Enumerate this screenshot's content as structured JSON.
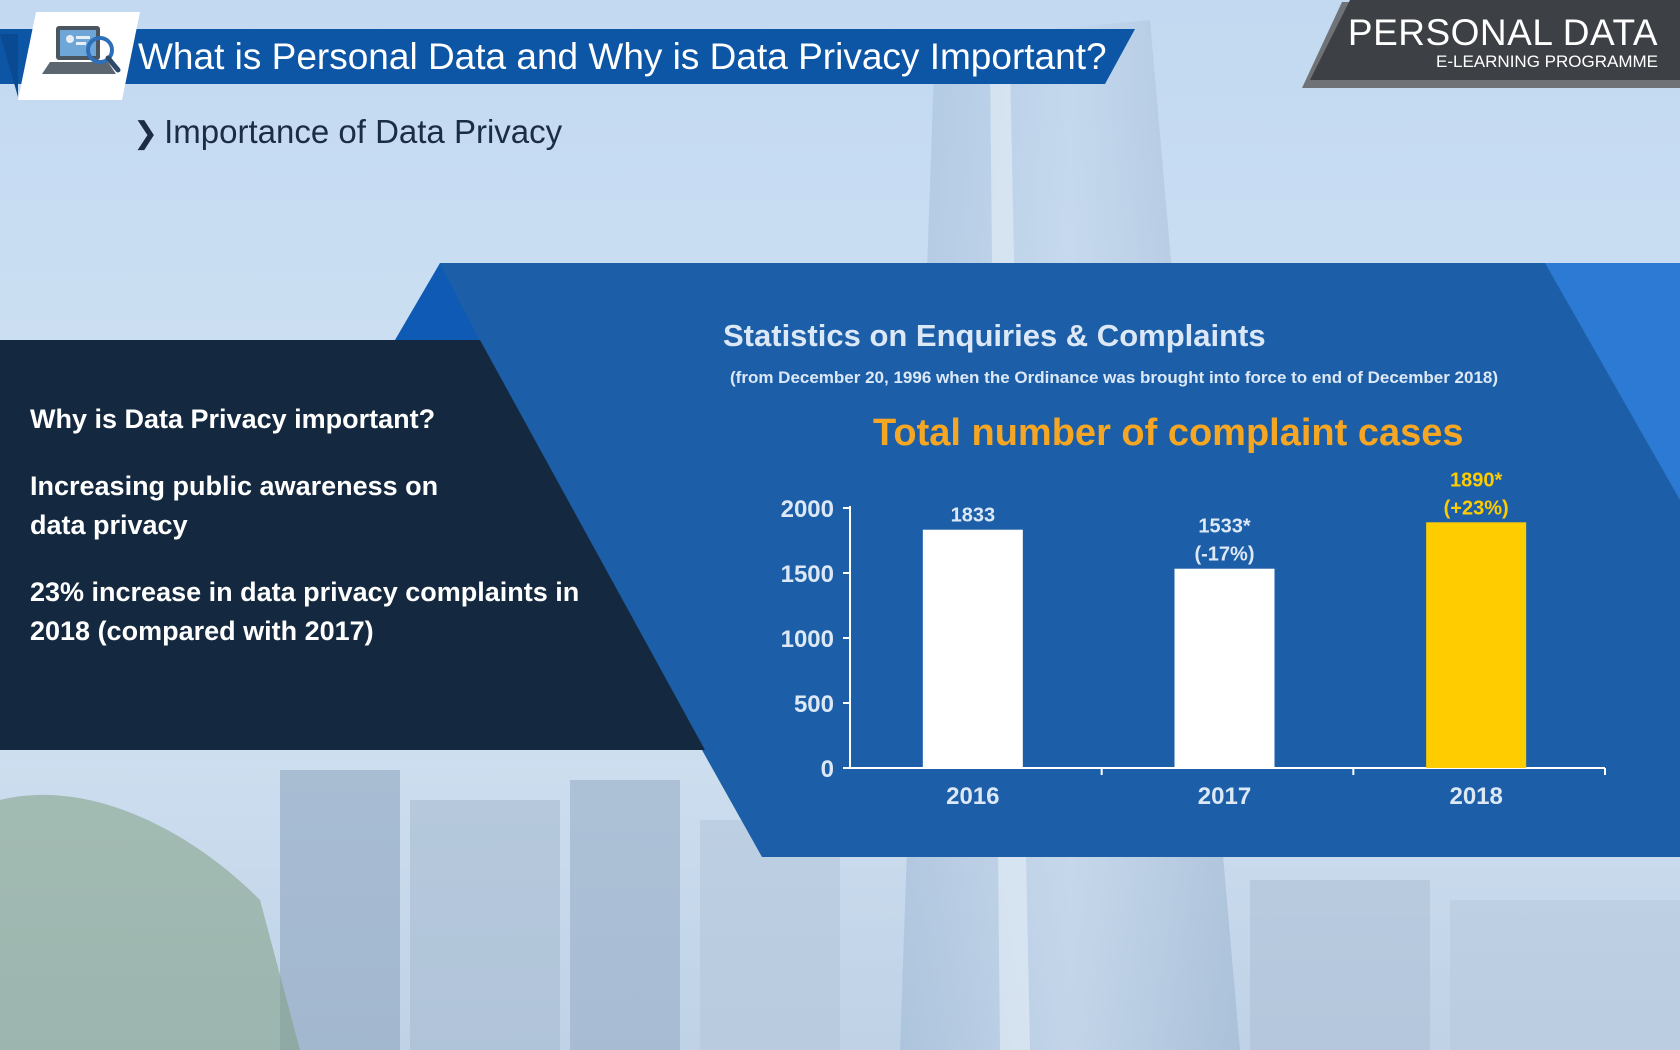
{
  "header": {
    "title": "What is Personal Data and Why is Data Privacy Important?",
    "brand_title": "PERSONAL DATA",
    "brand_subtitle": "E-LEARNING PROGRAMME",
    "logo_icon": "laptop-magnifier-icon"
  },
  "section": {
    "chevron": "❯",
    "subtitle": "Importance of Data Privacy"
  },
  "left_panel": {
    "heading": "Why is Data Privacy important?",
    "point_1": "Increasing public awareness on data privacy",
    "point_2": "23% increase in data privacy complaints in 2018 (compared with 2017)"
  },
  "colors": {
    "banner_blue": "#0d56a6",
    "panel_blue": "#1c5fa8",
    "panel_dark": "#14293f",
    "highlight_yellow": "#ffcc00",
    "heading_orange": "#f5a623"
  },
  "chart_data": {
    "type": "bar",
    "title": "Statistics on Enquiries & Complaints",
    "subtitle": "(from December 20, 1996 when the Ordinance was brought into force to end of December 2018)",
    "heading": "Total number of complaint cases",
    "categories": [
      "2016",
      "2017",
      "2018"
    ],
    "values": [
      1833,
      1533,
      1890
    ],
    "value_labels": [
      [
        "1833"
      ],
      [
        "1533*",
        "(-17%)"
      ],
      [
        "1890*",
        "(+23%)"
      ]
    ],
    "bar_colors": [
      "#ffffff",
      "#ffffff",
      "#ffcc00"
    ],
    "label_colors": [
      "#dce8f6",
      "#dce8f6",
      "#ffcc00"
    ],
    "yticks": [
      0,
      500,
      1000,
      1500,
      2000
    ],
    "ylim": [
      0,
      2000
    ],
    "grid": false
  }
}
